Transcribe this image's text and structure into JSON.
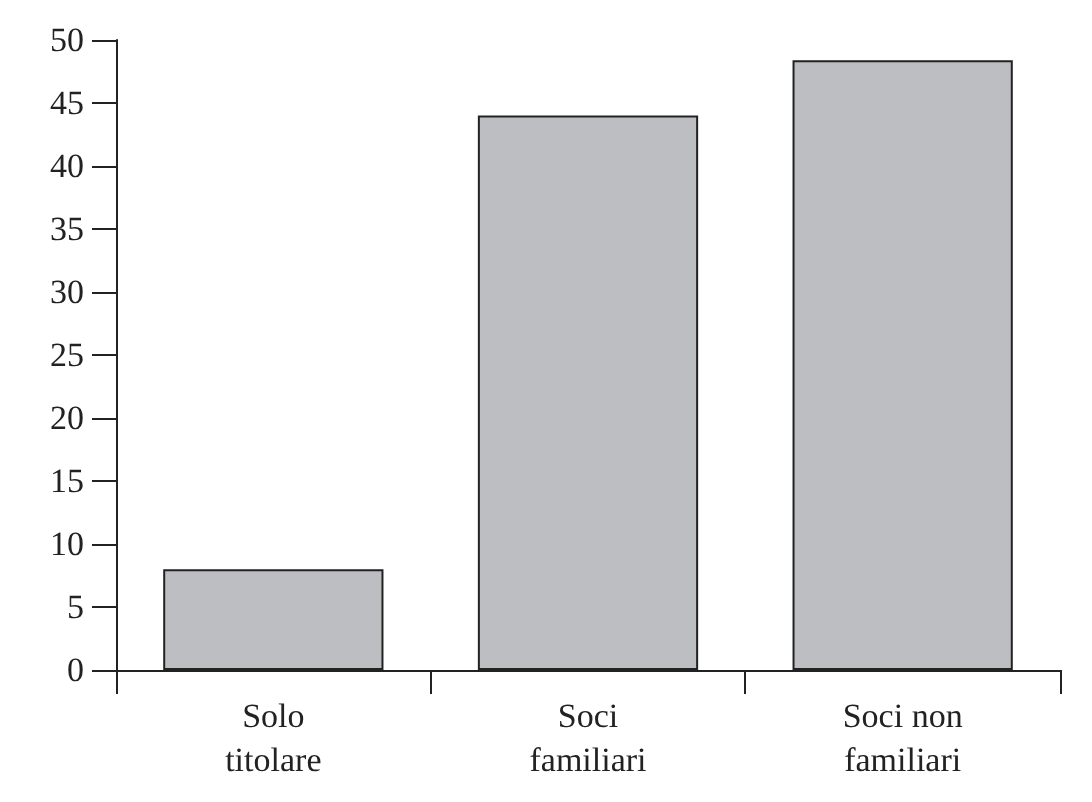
{
  "chart_data": {
    "type": "bar",
    "categories": [
      "Solo\ntitolare",
      "Soci\nfamiliari",
      "Soci non\nfamiliari"
    ],
    "values": [
      8,
      44,
      48.4
    ],
    "color": "#bdbec2",
    "ylim": [
      0,
      50
    ],
    "yticks": [
      0,
      5,
      10,
      15,
      20,
      25,
      30,
      35,
      40,
      45,
      50
    ],
    "grid": false
  }
}
